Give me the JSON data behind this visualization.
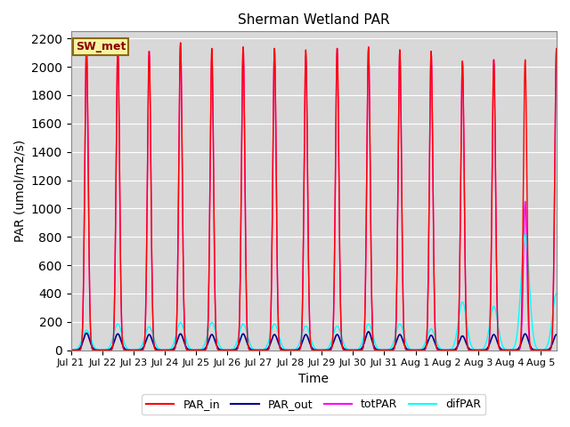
{
  "title": "Sherman Wetland PAR",
  "ylabel": "PAR (umol/m2/s)",
  "xlabel": "Time",
  "ylim": [
    0,
    2250
  ],
  "site_label": "SW_met",
  "legend_entries": [
    "PAR_in",
    "PAR_out",
    "totPAR",
    "difPAR"
  ],
  "legend_colors": [
    "#ff0000",
    "#00008b",
    "#ff00ff",
    "#00ffff"
  ],
  "background_color": "#d8d8d8",
  "grid_color": "#ffffff",
  "x_tick_labels": [
    "Jul 21",
    "Jul 22",
    "Jul 23",
    "Jul 24",
    "Jul 25",
    "Jul 26",
    "Jul 27",
    "Jul 28",
    "Jul 29",
    "Jul 30",
    "Jul 31",
    "Aug 1",
    "Aug 2",
    "Aug 3",
    "Aug 4",
    "Aug 5"
  ],
  "num_days": 16,
  "par_in_peaks": [
    2155,
    2150,
    2110,
    2170,
    2130,
    2140,
    2130,
    2120,
    2130,
    2140,
    2120,
    2110,
    2040,
    2050,
    2050,
    2130
  ],
  "tot_par_peaks": [
    2155,
    2150,
    2110,
    2170,
    2080,
    2140,
    2130,
    2080,
    2130,
    2140,
    2120,
    2110,
    2040,
    2050,
    1050,
    2130
  ],
  "par_out_peaks": [
    120,
    115,
    110,
    115,
    110,
    115,
    110,
    110,
    110,
    130,
    110,
    105,
    100,
    110,
    115,
    110
  ],
  "dif_par_peaks": [
    140,
    185,
    165,
    195,
    195,
    185,
    185,
    170,
    170,
    185,
    185,
    150,
    340,
    310,
    820,
    400
  ],
  "sigma_in": 0.055,
  "sigma_tot": 0.055,
  "sigma_out": 0.1,
  "sigma_dif": 0.13,
  "figsize": [
    6.4,
    4.8
  ],
  "dpi": 100
}
